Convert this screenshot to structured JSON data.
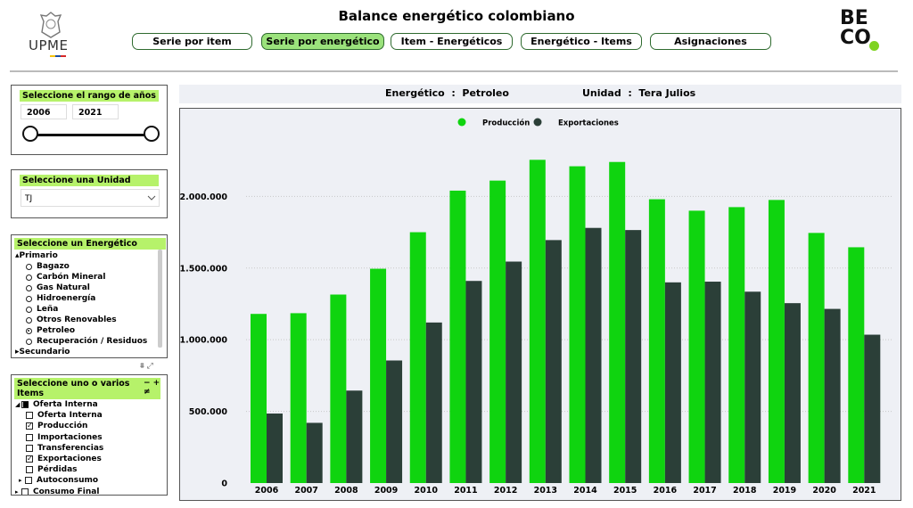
{
  "header": {
    "title": "Balance energético colombiano",
    "left_logo": "UPME",
    "right_logo": [
      "BE",
      "CO"
    ],
    "tabs": [
      "Serie por item",
      "Serie por energético",
      "Item - Energéticos",
      "Energético - Items",
      "Asignaciones"
    ],
    "active_tab": 1
  },
  "year_slicer": {
    "title": "Seleccione el rango de años",
    "from": "2006",
    "to": "2021"
  },
  "unit_slicer": {
    "title": "Seleccione una Unidad",
    "value": "TJ"
  },
  "energy_slicer": {
    "title": "Seleccione un Energético",
    "group": "Primario",
    "items": [
      "Bagazo",
      "Carbón Mineral",
      "Gas Natural",
      "Hidroenergía",
      "Leña",
      "Otros Renovables",
      "Petroleo",
      "Recuperación / Residuos"
    ],
    "selected": 6,
    "next_group": "Secundario"
  },
  "items_slicer": {
    "title": "Seleccione uno o varios Items",
    "items": [
      {
        "label": "Oferta Interna",
        "level": 0,
        "state": "partial",
        "expander": "open"
      },
      {
        "label": "Oferta Interna",
        "level": 1,
        "state": "off"
      },
      {
        "label": "Producción",
        "level": 1,
        "state": "on"
      },
      {
        "label": "Importaciones",
        "level": 1,
        "state": "off"
      },
      {
        "label": "Transferencias",
        "level": 1,
        "state": "off"
      },
      {
        "label": "Exportaciones",
        "level": 1,
        "state": "on"
      },
      {
        "label": "Pérdidas",
        "level": 1,
        "state": "off"
      },
      {
        "label": "Autoconsumo",
        "level": 1,
        "state": "off",
        "expander": "closed"
      },
      {
        "label": "Consumo Final",
        "level": 0,
        "state": "off",
        "expander": "closed"
      }
    ]
  },
  "info_bar": {
    "energy": "Energético  :  Petroleo",
    "unit": "Unidad  :  Tera Julios"
  },
  "chart_data": {
    "type": "bar",
    "categories": [
      "2006",
      "2007",
      "2008",
      "2009",
      "2010",
      "2011",
      "2012",
      "2013",
      "2014",
      "2015",
      "2016",
      "2017",
      "2018",
      "2019",
      "2020",
      "2021"
    ],
    "series": [
      {
        "name": "Producción",
        "color": "#0fd40f",
        "values": [
          1180000,
          1185000,
          1315000,
          1495000,
          1750000,
          2040000,
          2110000,
          2255000,
          2210000,
          2240000,
          1980000,
          1900000,
          1925000,
          1975000,
          1745000,
          1645000
        ]
      },
      {
        "name": "Exportaciones",
        "color": "#2b3f38",
        "values": [
          485000,
          420000,
          645000,
          855000,
          1120000,
          1410000,
          1545000,
          1695000,
          1780000,
          1765000,
          1400000,
          1405000,
          1335000,
          1255000,
          1215000,
          1035000
        ]
      }
    ],
    "ylim": [
      0,
      2400000
    ],
    "yticks": [
      0,
      {
        "value": 500000,
        "label": "500.000"
      },
      {
        "value": 1000000,
        "label": "1.000.000"
      },
      {
        "value": 1500000,
        "label": "1.500.000"
      },
      {
        "value": 2000000,
        "label": "2.000.000"
      }
    ],
    "grid": true,
    "legend": "top"
  }
}
